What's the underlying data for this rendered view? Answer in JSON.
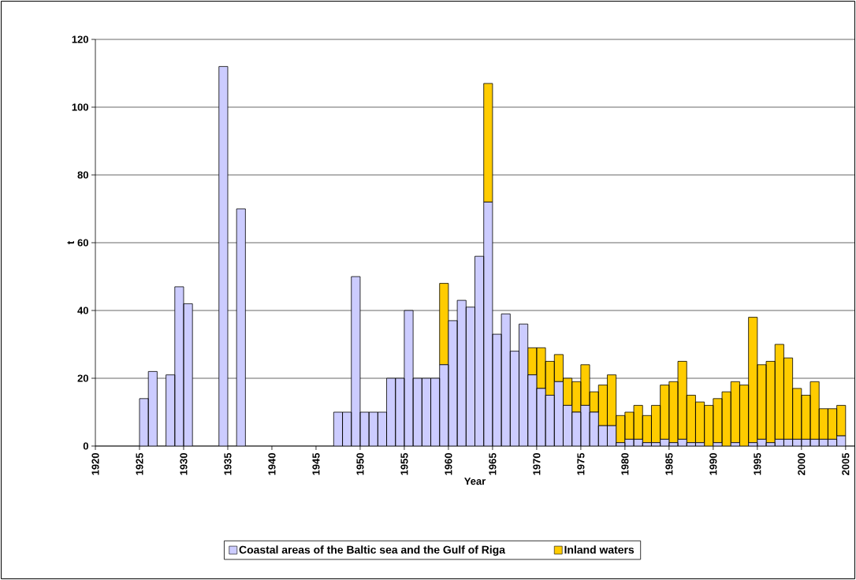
{
  "chart_data": {
    "type": "bar",
    "stacked": true,
    "xlabel": "Year",
    "ylabel": "t",
    "x": [
      1925.5,
      1926.5,
      1927.5,
      1928.5,
      1929.5,
      1930.5,
      1931.5,
      1932.5,
      1933.5,
      1934.5,
      1935.5,
      1936.5,
      1937.5,
      1938.5,
      1939.5,
      1940.5,
      1941.5,
      1942.5,
      1943.5,
      1944.5,
      1945.5,
      1946.5,
      1947.5,
      1948.5,
      1949.5,
      1950.5,
      1951.5,
      1952.5,
      1953.5,
      1954.5,
      1955.5,
      1956.5,
      1957.5,
      1958.5,
      1959.5,
      1960.5,
      1961.5,
      1962.5,
      1963.5,
      1964.5,
      1965.5,
      1966.5,
      1967.5,
      1968.5,
      1969.5,
      1970.5,
      1971.5,
      1972.5,
      1973.5,
      1974.5,
      1975.5,
      1976.5,
      1977.5,
      1978.5,
      1979.5,
      1980.5,
      1981.5,
      1982.5,
      1983.5,
      1984.5,
      1985.5,
      1986.5,
      1987.5,
      1988.5,
      1989.5,
      1990.5,
      1991.5,
      1992.5,
      1993.5,
      1994.5,
      1995.5,
      1996.5,
      1997.5,
      1998.5,
      1999.5,
      2000.5,
      2001.5,
      2002.5,
      2003.5,
      2004.5
    ],
    "series": [
      {
        "name": "Coastal areas of the Baltic sea and the Gulf of Riga",
        "color": "#ccccff",
        "values": [
          14,
          22,
          null,
          21,
          47,
          42,
          null,
          null,
          null,
          112,
          null,
          70,
          null,
          null,
          null,
          null,
          null,
          null,
          null,
          null,
          null,
          null,
          10,
          10,
          50,
          10,
          10,
          10,
          20,
          20,
          40,
          20,
          20,
          20,
          24,
          37,
          43,
          41,
          56,
          72,
          33,
          39,
          28,
          36,
          21,
          17,
          15,
          19,
          12,
          10,
          12,
          10,
          6,
          6,
          1,
          2,
          2,
          1,
          1,
          2,
          1,
          2,
          1,
          1,
          0,
          1,
          0,
          1,
          0,
          1,
          2,
          1,
          2,
          2,
          2,
          2,
          2,
          2,
          2,
          3
        ]
      },
      {
        "name": "Inland waters",
        "color": "#ffcc00",
        "values": [
          null,
          null,
          null,
          null,
          null,
          null,
          null,
          null,
          null,
          null,
          null,
          null,
          null,
          null,
          null,
          null,
          null,
          null,
          null,
          null,
          null,
          null,
          null,
          null,
          null,
          null,
          null,
          null,
          null,
          null,
          null,
          null,
          null,
          null,
          24,
          null,
          null,
          null,
          null,
          35,
          null,
          null,
          null,
          null,
          8,
          12,
          10,
          8,
          8,
          9,
          12,
          6,
          12,
          15,
          8,
          8,
          10,
          8,
          11,
          16,
          18,
          23,
          14,
          12,
          12,
          13,
          16,
          18,
          18,
          37,
          22,
          24,
          28,
          24,
          15,
          13,
          17,
          9,
          9,
          9
        ]
      }
    ],
    "xlim": [
      1920,
      2006
    ],
    "xticks": [
      1920,
      1925,
      1930,
      1935,
      1940,
      1945,
      1950,
      1955,
      1960,
      1965,
      1970,
      1975,
      1980,
      1985,
      1990,
      1995,
      2000,
      2005
    ],
    "ylim": [
      0,
      120
    ],
    "yticks": [
      0,
      20,
      40,
      60,
      80,
      100,
      120
    ],
    "grid": "y",
    "legend": "bottom"
  }
}
